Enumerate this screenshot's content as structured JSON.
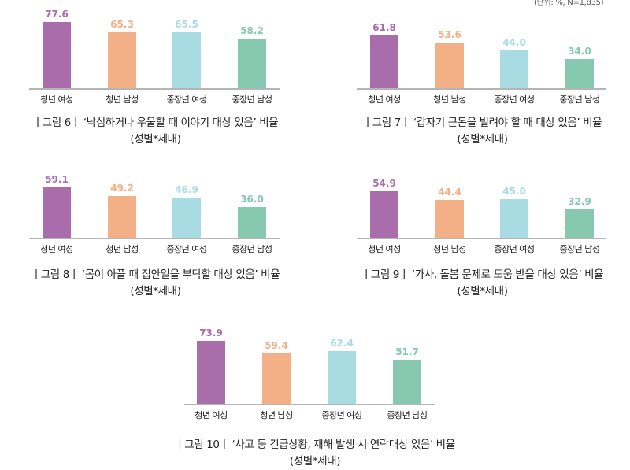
{
  "unit_note": "(단위: %, N=1,835)",
  "colors": {
    "young_female": "#A96DAC",
    "young_male": "#F3AF85",
    "middle_female": "#A8DBE2",
    "middle_male": "#86C9B0",
    "axis": "#B5B5B5",
    "text": "#222222"
  },
  "categories": [
    "청년 여성",
    "청년 남성",
    "중장년 여성",
    "중장년 남성"
  ],
  "figures": [
    {
      "fig_label": "ㅣ그림 6ㅣ",
      "title": "‘낙심하거나 우울할 때 이야기 대상 있음’ 비율",
      "subtitle": "(성별*세대)",
      "values": [
        "77.6",
        "65.3",
        "65.5",
        "58.2"
      ]
    },
    {
      "fig_label": "ㅣ그림 7ㅣ",
      "title": "‘갑자기 큰돈을 빌려야 할 때 대상 있음’ 비율",
      "subtitle": "(성별*세대)",
      "values": [
        "61.8",
        "53.6",
        "44.0",
        "34.0"
      ]
    },
    {
      "fig_label": "ㅣ그림 8ㅣ",
      "title": "‘몸이 아플 때 집안일을 부탁할 대상 있음’ 비율",
      "subtitle": "(성별*세대)",
      "values": [
        "59.1",
        "49.2",
        "46.9",
        "36.0"
      ]
    },
    {
      "fig_label": "ㅣ그림 9ㅣ",
      "title": "‘가사, 돌봄 문제로 도움 받을 대상 있음’ 비율",
      "subtitle": "(성별*세대)",
      "values": [
        "54.9",
        "44.4",
        "45.0",
        "32.9"
      ]
    },
    {
      "fig_label": "ㅣ그림 10ㅣ",
      "title": "‘사고 등 긴급상황, 재해 발생 시 연락대상 있음’ 비율",
      "subtitle": "(성별*세대)",
      "values": [
        "73.9",
        "59.4",
        "62.4",
        "51.7"
      ]
    }
  ],
  "chart_data": [
    {
      "type": "bar",
      "title": "그림 6 ‘낙심하거나 우울할 때 이야기 대상 있음’ 비율 (성별*세대)",
      "categories": [
        "청년 여성",
        "청년 남성",
        "중장년 여성",
        "중장년 남성"
      ],
      "values": [
        77.6,
        65.3,
        65.5,
        58.2
      ],
      "xlabel": "",
      "ylabel": "%",
      "grid": false,
      "unit": "%",
      "n": 1835
    },
    {
      "type": "bar",
      "title": "그림 7 ‘갑자기 큰돈을 빌려야 할 때 대상 있음’ 비율 (성별*세대)",
      "categories": [
        "청년 여성",
        "청년 남성",
        "중장년 여성",
        "중장년 남성"
      ],
      "values": [
        61.8,
        53.6,
        44.0,
        34.0
      ],
      "xlabel": "",
      "ylabel": "%",
      "grid": false,
      "unit": "%",
      "n": 1835
    },
    {
      "type": "bar",
      "title": "그림 8 ‘몸이 아플 때 집안일을 부탁할 대상 있음’ 비율 (성별*세대)",
      "categories": [
        "청년 여성",
        "청년 남성",
        "중장년 여성",
        "중장년 남성"
      ],
      "values": [
        59.1,
        49.2,
        46.9,
        36.0
      ],
      "xlabel": "",
      "ylabel": "%",
      "grid": false,
      "unit": "%",
      "n": 1835
    },
    {
      "type": "bar",
      "title": "그림 9 ‘가사, 돌봄 문제로 도움 받을 대상 있음’ 비율 (성별*세대)",
      "categories": [
        "청년 여성",
        "청년 남성",
        "중장년 여성",
        "중장년 남성"
      ],
      "values": [
        54.9,
        44.4,
        45.0,
        32.9
      ],
      "xlabel": "",
      "ylabel": "%",
      "grid": false,
      "unit": "%",
      "n": 1835
    },
    {
      "type": "bar",
      "title": "그림 10 ‘사고 등 긴급상황, 재해 발생 시 연락대상 있음’ 비율 (성별*세대)",
      "categories": [
        "청년 여성",
        "청년 남성",
        "중장년 여성",
        "중장년 남성"
      ],
      "values": [
        73.9,
        59.4,
        62.4,
        51.7
      ],
      "xlabel": "",
      "ylabel": "%",
      "grid": false,
      "unit": "%",
      "n": 1835
    }
  ]
}
